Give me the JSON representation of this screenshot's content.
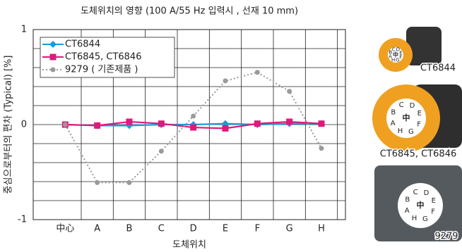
{
  "chart_data": {
    "type": "line",
    "title": "도체위치의 영향 (100 A/55 Hz 입력시 , 선재 10 mm)",
    "x_label": "도체위치",
    "y_label": "중심으로부터의 편차 (Typical) [%]",
    "categories": [
      "中心",
      "A",
      "B",
      "C",
      "D",
      "E",
      "F",
      "G",
      "H"
    ],
    "series": [
      {
        "name": "CT6844",
        "color": "#1b9ad8",
        "marker": "diamond",
        "dash": "solid",
        "values": [
          0,
          -0.01,
          -0.01,
          0,
          0,
          0.01,
          0,
          0.01,
          0.01
        ]
      },
      {
        "name": "CT6845, CT6846",
        "color": "#e0197a",
        "marker": "square",
        "dash": "solid",
        "values": [
          0,
          -0.01,
          0.03,
          0.01,
          -0.03,
          -0.04,
          0.01,
          0.03,
          0.01
        ]
      },
      {
        "name": "9279 ( 기존제품 )",
        "color": "#9a9a9a",
        "marker": "circle",
        "dash": "dotted",
        "values": [
          0,
          -0.61,
          -0.61,
          -0.28,
          0.09,
          0.46,
          0.55,
          0.35,
          -0.25
        ]
      }
    ],
    "ylim": [
      -1,
      1
    ],
    "yticks": [
      -1,
      0,
      1
    ],
    "yminor": [
      -0.8,
      -0.6,
      -0.4,
      -0.2,
      0.2,
      0.4,
      0.6,
      0.8
    ],
    "grid": true,
    "legend": "upper left"
  },
  "products": [
    {
      "label": "CT6844",
      "letters": [
        "A",
        "B",
        "C",
        "D",
        "E",
        "F",
        "G",
        "H"
      ],
      "center": "中"
    },
    {
      "label": "CT6845, CT6846",
      "letters": [
        "A",
        "B",
        "C",
        "D",
        "E",
        "F",
        "G",
        "H"
      ],
      "center": "中"
    },
    {
      "label": "9279",
      "letters": [
        "A",
        "B",
        "C",
        "D",
        "E",
        "F",
        "G",
        "H"
      ],
      "center": "中"
    }
  ]
}
